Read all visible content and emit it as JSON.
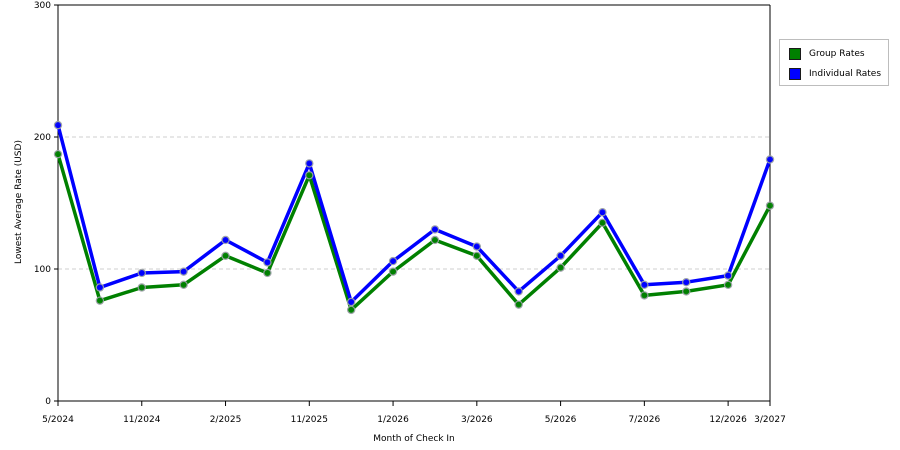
{
  "chart_data": {
    "type": "line",
    "xlabel": "Month of Check In",
    "ylabel": "Lowest Average Rate (USD)",
    "ylim": [
      0,
      300
    ],
    "yticks": [
      "0",
      "100",
      "200",
      "300"
    ],
    "grid": "horizontal dashed",
    "legend_position": "right",
    "x_tick_labels": [
      "5/2024",
      "",
      "11/2024",
      "",
      "2/2025",
      "",
      "11/2025",
      "",
      "1/2026",
      "",
      "3/2026",
      "",
      "5/2026",
      "",
      "7/2026",
      "",
      "12/2026",
      "3/2027"
    ],
    "series": [
      {
        "name": "Group Rates",
        "color": "#008000",
        "values": [
          187,
          76,
          86,
          88,
          110,
          97,
          171,
          69,
          98,
          122,
          110,
          73,
          101,
          135,
          80,
          83,
          88,
          148
        ]
      },
      {
        "name": "Individual Rates",
        "color": "#0000ff",
        "values": [
          209,
          86,
          97,
          98,
          122,
          105,
          180,
          75,
          106,
          130,
          117,
          83,
          110,
          143,
          88,
          90,
          95,
          183
        ]
      }
    ]
  }
}
